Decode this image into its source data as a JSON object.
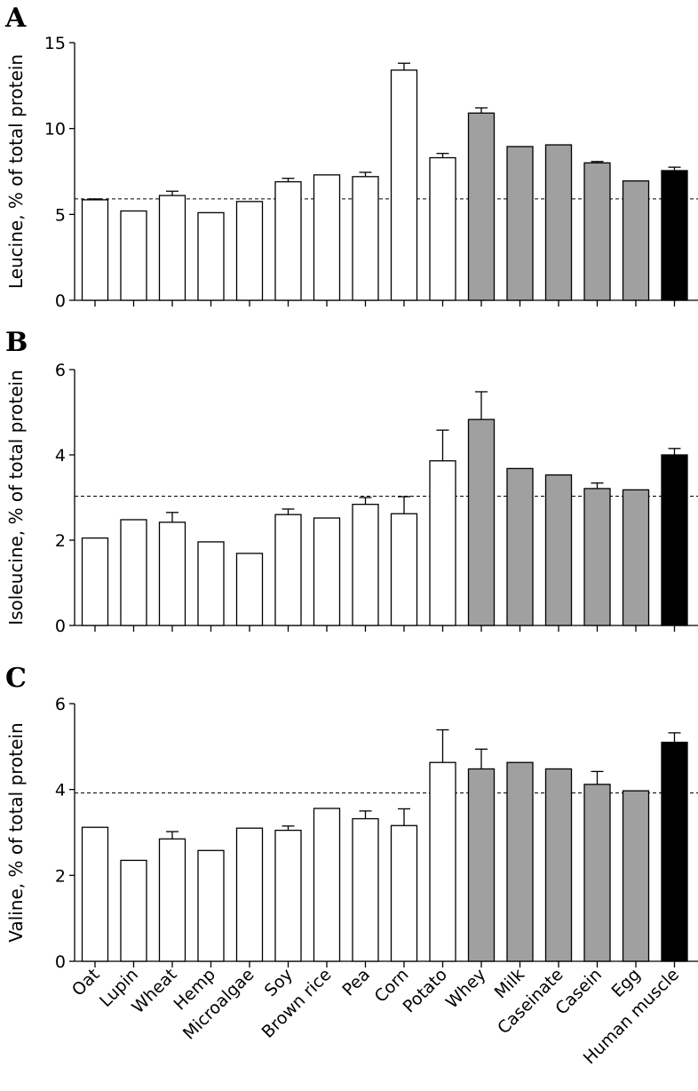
{
  "chart_data": [
    {
      "type": "bar",
      "panel": "A",
      "ylabel": "Leucine, % of total protein",
      "ylim": [
        0,
        15
      ],
      "yticks": [
        0,
        5,
        10,
        15
      ],
      "reference_line": 5.9,
      "categories": [
        "Oat",
        "Lupin",
        "Wheat",
        "Hemp",
        "Microalgae",
        "Soy",
        "Brown rice",
        "Pea",
        "Corn",
        "Potato",
        "Whey",
        "Milk",
        "Caseinate",
        "Casein",
        "Egg",
        "Human muscle"
      ],
      "values": [
        5.85,
        5.2,
        6.1,
        5.1,
        5.75,
        6.9,
        7.3,
        7.2,
        13.4,
        8.3,
        10.9,
        8.95,
        9.05,
        8.0,
        6.95,
        7.55
      ],
      "error": [
        0.05,
        0,
        0.25,
        0,
        0,
        0.2,
        0,
        0.25,
        0.4,
        0.25,
        0.3,
        0,
        0,
        0.08,
        0,
        0.2
      ],
      "bar_colors": [
        "#ffffff",
        "#ffffff",
        "#ffffff",
        "#ffffff",
        "#ffffff",
        "#ffffff",
        "#ffffff",
        "#ffffff",
        "#ffffff",
        "#ffffff",
        "#a0a0a0",
        "#a0a0a0",
        "#a0a0a0",
        "#a0a0a0",
        "#a0a0a0",
        "#000000"
      ]
    },
    {
      "type": "bar",
      "panel": "B",
      "ylabel": "Isoleucine, % of total protein",
      "ylim": [
        0,
        6
      ],
      "yticks": [
        0,
        2,
        4,
        6
      ],
      "reference_line": 3.03,
      "categories": [
        "Oat",
        "Lupin",
        "Wheat",
        "Hemp",
        "Microalgae",
        "Soy",
        "Brown rice",
        "Pea",
        "Corn",
        "Potato",
        "Whey",
        "Milk",
        "Caseinate",
        "Casein",
        "Egg",
        "Human muscle"
      ],
      "values": [
        2.05,
        2.48,
        2.42,
        1.96,
        1.69,
        2.6,
        2.52,
        2.84,
        2.62,
        3.86,
        4.83,
        3.68,
        3.53,
        3.21,
        3.18,
        4.0
      ],
      "error": [
        0,
        0,
        0.23,
        0,
        0,
        0.13,
        0,
        0.16,
        0.4,
        0.72,
        0.65,
        0,
        0,
        0.13,
        0,
        0.15
      ],
      "bar_colors": [
        "#ffffff",
        "#ffffff",
        "#ffffff",
        "#ffffff",
        "#ffffff",
        "#ffffff",
        "#ffffff",
        "#ffffff",
        "#ffffff",
        "#ffffff",
        "#a0a0a0",
        "#a0a0a0",
        "#a0a0a0",
        "#a0a0a0",
        "#a0a0a0",
        "#000000"
      ]
    },
    {
      "type": "bar",
      "panel": "C",
      "ylabel": "Valine, % of total protein",
      "ylim": [
        0,
        6
      ],
      "yticks": [
        0,
        2,
        4,
        6
      ],
      "reference_line": 3.92,
      "categories": [
        "Oat",
        "Lupin",
        "Wheat",
        "Hemp",
        "Microalgae",
        "Soy",
        "Brown rice",
        "Pea",
        "Corn",
        "Potato",
        "Whey",
        "Milk",
        "Caseinate",
        "Casein",
        "Egg",
        "Human muscle"
      ],
      "values": [
        3.12,
        2.35,
        2.85,
        2.58,
        3.1,
        3.05,
        3.56,
        3.32,
        3.16,
        4.63,
        4.48,
        4.63,
        4.48,
        4.12,
        3.97,
        5.1
      ],
      "error": [
        0,
        0,
        0.17,
        0,
        0,
        0.1,
        0,
        0.18,
        0.39,
        0.76,
        0.46,
        0,
        0,
        0.3,
        0,
        0.22
      ],
      "bar_colors": [
        "#ffffff",
        "#ffffff",
        "#ffffff",
        "#ffffff",
        "#ffffff",
        "#ffffff",
        "#ffffff",
        "#ffffff",
        "#ffffff",
        "#ffffff",
        "#a0a0a0",
        "#a0a0a0",
        "#a0a0a0",
        "#a0a0a0",
        "#a0a0a0",
        "#000000"
      ]
    }
  ]
}
